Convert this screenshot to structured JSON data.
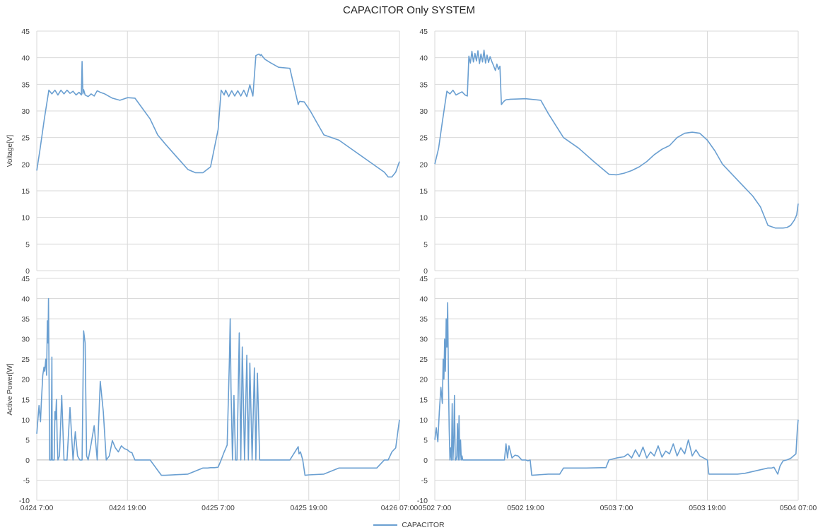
{
  "figure_title": "CAPACITOR Only SYSTEM",
  "legend": {
    "label": "CAPACITOR",
    "color": "#6a9fd1"
  },
  "colors": {
    "series": "#6a9fd1",
    "grid": "#d9d9d9",
    "axis": "#bfbfbf"
  },
  "chart_data": [
    {
      "type": "line",
      "panel": "top-left",
      "ylabel": "Voltage[V]",
      "xlabel": "",
      "ylim": [
        0,
        45
      ],
      "yticks": [
        0,
        5,
        10,
        15,
        20,
        25,
        30,
        35,
        40,
        45
      ],
      "xlim": [
        0,
        48
      ],
      "xticks": [],
      "grid": true,
      "series": [
        {
          "x": [
            0,
            0.4,
            1,
            1.6,
            2,
            2.4,
            2.8,
            3.2,
            3.6,
            4,
            4.4,
            4.8,
            5.2,
            5.6,
            5.9,
            6,
            6.1,
            6.2,
            6.4,
            6.8,
            7.2,
            7.6,
            8,
            8.4,
            9,
            10,
            11,
            12,
            13,
            15,
            16,
            17,
            18,
            20,
            21,
            22,
            23,
            24,
            24.4,
            24.8,
            25,
            25.4,
            25.8,
            26.2,
            26.6,
            27,
            27.4,
            27.8,
            28.2,
            28.6,
            29,
            29.4,
            29.6,
            29.7,
            29.9,
            30.2,
            31,
            32,
            33.5,
            34.6,
            34.7,
            34.8,
            35.4,
            36.2,
            37,
            38,
            40,
            42,
            44,
            45,
            46,
            46.5,
            47,
            47.5,
            48
          ],
          "y": [
            18.8,
            22.5,
            28.5,
            33.9,
            33.2,
            33.9,
            33.0,
            33.9,
            33.2,
            33.9,
            33.3,
            33.7,
            33.0,
            33.5,
            33.0,
            39.3,
            33.2,
            34.0,
            33.0,
            32.7,
            33.2,
            32.8,
            33.8,
            33.5,
            33.2,
            32.4,
            32.0,
            32.5,
            32.4,
            28.5,
            25.5,
            23.8,
            22.2,
            19.0,
            18.4,
            18.4,
            19.5,
            26.5,
            33.9,
            33.0,
            33.9,
            32.7,
            33.8,
            32.8,
            33.8,
            32.8,
            33.9,
            32.7,
            34.9,
            32.8,
            40.4,
            40.7,
            40.4,
            40.6,
            40.2,
            39.7,
            39.0,
            38.2,
            38.0,
            31.2,
            31.6,
            31.8,
            31.7,
            30.0,
            28.0,
            25.5,
            24.5,
            22.5,
            20.5,
            19.5,
            18.5,
            17.6,
            17.6,
            18.5,
            20.5
          ]
        }
      ]
    },
    {
      "type": "line",
      "panel": "top-right",
      "ylabel": "",
      "xlabel": "",
      "ylim": [
        0,
        45
      ],
      "yticks": [
        0,
        5,
        10,
        15,
        20,
        25,
        30,
        35,
        40,
        45
      ],
      "xlim": [
        0,
        48
      ],
      "xticks": [],
      "grid": true,
      "series": [
        {
          "x": [
            0,
            0.5,
            1,
            1.6,
            2,
            2.4,
            2.8,
            3.2,
            3.6,
            4,
            4.3,
            4.5,
            4.7,
            4.9,
            5.1,
            5.3,
            5.5,
            5.7,
            5.9,
            6.1,
            6.3,
            6.5,
            6.7,
            6.9,
            7.1,
            7.3,
            7.5,
            7.7,
            8,
            8.2,
            8.4,
            8.6,
            8.8,
            9,
            9.2,
            9.4,
            10,
            12,
            14,
            15,
            17,
            19,
            21,
            22,
            23,
            24,
            25,
            26,
            27,
            28,
            29,
            30,
            31,
            32,
            33,
            34,
            35,
            36,
            37,
            38,
            40,
            41,
            42,
            43,
            44,
            45,
            46,
            46.5,
            47,
            47.5,
            47.8,
            48
          ],
          "y": [
            20,
            23,
            28,
            33.7,
            33.2,
            33.9,
            33.0,
            33.3,
            33.6,
            33.0,
            32.8,
            40.3,
            39.0,
            41.2,
            39.2,
            40.8,
            39.4,
            41.3,
            38.9,
            40.7,
            39.2,
            41.4,
            39.0,
            40.5,
            39.1,
            40.2,
            39.4,
            38.7,
            37.6,
            38.8,
            37.8,
            38.4,
            31.2,
            31.6,
            31.9,
            32.1,
            32.2,
            32.3,
            32.0,
            29.5,
            25.0,
            23.0,
            20.5,
            19.3,
            18.1,
            18.0,
            18.3,
            18.8,
            19.5,
            20.5,
            21.8,
            22.8,
            23.5,
            25.0,
            25.8,
            26.0,
            25.8,
            24.5,
            22.5,
            20.0,
            17.0,
            15.5,
            14.0,
            12.0,
            8.5,
            8.0,
            8.0,
            8.1,
            8.5,
            9.5,
            10.5,
            12.6
          ]
        }
      ]
    },
    {
      "type": "line",
      "panel": "bottom-left",
      "ylabel": "Active Power[W]",
      "xlabel": "",
      "ylim": [
        -10,
        45
      ],
      "yticks": [
        -10,
        -5,
        0,
        5,
        10,
        15,
        20,
        25,
        30,
        35,
        40,
        45
      ],
      "xlim": [
        0,
        48
      ],
      "xticks": [
        "0424 7:00",
        "0424 19:00",
        "0425 7:00",
        "0425 19:00",
        "0426 07:00"
      ],
      "grid": true,
      "series": [
        {
          "x": [
            0,
            0.15,
            0.3,
            0.5,
            0.6,
            0.8,
            0.95,
            1.05,
            1.2,
            1.3,
            1.4,
            1.5,
            1.55,
            1.6,
            1.7,
            1.8,
            1.9,
            2.0,
            2.05,
            2.1,
            2.2,
            2.3,
            2.4,
            2.5,
            2.6,
            2.7,
            2.8,
            3.0,
            3.3,
            3.6,
            4.0,
            4.4,
            4.8,
            5.1,
            5.4,
            5.7,
            6.0,
            6.2,
            6.4,
            6.6,
            6.8,
            7.2,
            7.6,
            8.0,
            8.4,
            8.8,
            9.2,
            9.6,
            10,
            10.4,
            10.8,
            11.2,
            11.6,
            12,
            12.3,
            12.6,
            12.7,
            13,
            15,
            16.5,
            17,
            20,
            22,
            22.6,
            23,
            23.5,
            24,
            24.4,
            24.8,
            25.2,
            25.5,
            25.6,
            25.7,
            25.9,
            26.1,
            26.3,
            26.5,
            26.8,
            27.0,
            27.2,
            27.5,
            27.8,
            28.0,
            28.2,
            28.5,
            28.8,
            29.0,
            29.2,
            29.5,
            29.8,
            30,
            31,
            32,
            33.5,
            34.6,
            34.7,
            34.9,
            35.2,
            35.5,
            36,
            38,
            40,
            42,
            45,
            46,
            46.5,
            47,
            47.5,
            48
          ],
          "y": [
            6.5,
            10,
            13.5,
            9.5,
            14,
            21,
            23,
            22,
            25,
            21,
            34.5,
            29,
            40,
            28,
            0,
            0,
            0,
            25.5,
            0,
            0,
            0,
            0,
            12,
            10,
            15,
            5,
            0,
            1,
            16,
            0,
            0,
            13,
            0,
            7,
            1,
            0,
            0,
            32,
            29,
            1,
            0,
            4,
            8.5,
            0,
            19.5,
            12,
            0,
            1,
            4.8,
            3,
            2,
            3.5,
            2.8,
            2.5,
            2,
            1.8,
            1.3,
            0,
            0,
            -3.8,
            -3.8,
            -3.5,
            -2,
            -2,
            -1.9,
            -1.9,
            -1.8,
            0,
            2,
            3.7,
            25,
            35,
            18,
            0,
            16,
            0,
            0,
            31.5,
            0,
            28,
            0,
            26,
            0,
            24,
            0,
            22.8,
            0,
            21.5,
            0,
            0,
            0,
            0,
            0,
            0,
            3.3,
            1.5,
            2,
            0,
            -3.8,
            -3.7,
            -3.5,
            -2,
            -2,
            -2,
            0,
            0,
            2,
            3,
            10
          ]
        }
      ]
    },
    {
      "type": "line",
      "panel": "bottom-right",
      "ylabel": "",
      "xlabel": "",
      "ylim": [
        -10,
        45
      ],
      "yticks": [
        -10,
        -5,
        0,
        5,
        10,
        15,
        20,
        25,
        30,
        35,
        40,
        45
      ],
      "xlim": [
        0,
        48
      ],
      "xticks": [
        "0502 7:00",
        "0502 19:00",
        "0503 7:00",
        "0503 19:00",
        "0504 07:00"
      ],
      "grid": true,
      "series": [
        {
          "x": [
            0,
            0.2,
            0.4,
            0.6,
            0.8,
            1.0,
            1.1,
            1.2,
            1.3,
            1.4,
            1.5,
            1.6,
            1.7,
            1.8,
            1.9,
            2.0,
            2.1,
            2.2,
            2.3,
            2.4,
            2.5,
            2.6,
            2.7,
            2.8,
            2.9,
            3.0,
            3.1,
            3.2,
            3.3,
            3.4,
            3.5,
            3.6,
            3.7,
            3.8,
            3.9,
            4.0,
            4.2,
            4.4,
            4.6,
            4.8,
            5,
            6,
            8,
            9,
            9.2,
            9.4,
            9.6,
            9.8,
            10.2,
            10.6,
            11,
            11.5,
            12,
            12.3,
            12.6,
            12.8,
            15,
            16.5,
            17,
            20,
            22,
            22.6,
            23,
            24,
            25,
            25.5,
            26,
            26.5,
            27,
            27.5,
            28,
            28.5,
            29,
            29.5,
            30,
            30.5,
            31,
            31.5,
            32,
            32.5,
            33,
            33.5,
            34,
            34.5,
            35,
            36,
            36.2,
            36.5,
            40,
            41,
            44,
            44.5,
            44.8,
            45,
            45.3,
            45.6,
            46,
            46.5,
            47,
            47.5,
            47.7,
            47.9,
            48
          ],
          "y": [
            5,
            8,
            4.5,
            12,
            18,
            14,
            25,
            20,
            30,
            22,
            35,
            28,
            39,
            20,
            8,
            0,
            3,
            0,
            14,
            0,
            5,
            16,
            0,
            0,
            1,
            9,
            0,
            11,
            0,
            5,
            0,
            1,
            0,
            0,
            0,
            0,
            0,
            0,
            0,
            0,
            0,
            0,
            0,
            0,
            0,
            4,
            0.5,
            3.5,
            0.5,
            1.2,
            1,
            0,
            0,
            -0.2,
            0,
            -3.8,
            -3.5,
            -3.5,
            -2,
            -2,
            -1.9,
            -1.9,
            0,
            0.5,
            0.8,
            1.5,
            0.5,
            2.5,
            0.8,
            3.2,
            0.5,
            2.0,
            1.0,
            3.5,
            0.7,
            2.2,
            1.5,
            4.0,
            1.0,
            3.0,
            1.5,
            5.0,
            1.0,
            2.5,
            1.0,
            0,
            -3.5,
            -3.5,
            -3.5,
            -3.3,
            -2,
            -2,
            -1.8,
            -2.5,
            -3.5,
            -1.5,
            -0.2,
            0,
            0.4,
            1.2,
            1.5,
            8,
            10
          ]
        }
      ]
    }
  ]
}
